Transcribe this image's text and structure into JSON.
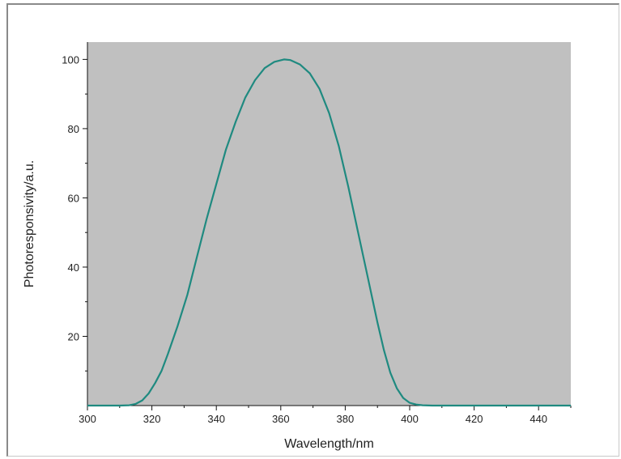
{
  "chart_data": {
    "type": "line",
    "title": "",
    "xlabel": "Wavelength/nm",
    "ylabel": "Photoresponsivity/a.u.",
    "xlim": [
      300,
      450
    ],
    "ylim": [
      0,
      105
    ],
    "x_ticks": [
      300,
      320,
      340,
      360,
      380,
      400,
      420,
      440
    ],
    "y_ticks": [
      20,
      40,
      60,
      80,
      100
    ],
    "grid": false,
    "legend": "none",
    "plot_background": "#c0c0c0",
    "line_color": "#1f8a80",
    "series": [
      {
        "x": [
          300,
          310,
          313,
          315,
          317,
          319,
          321,
          323,
          325,
          328,
          331,
          334,
          337,
          340,
          343,
          346,
          349,
          352,
          355,
          358,
          361,
          363,
          366,
          369,
          372,
          375,
          378,
          381,
          384,
          387,
          390,
          392,
          394,
          396,
          398,
          400,
          402,
          404,
          407,
          410,
          420,
          430,
          440,
          450
        ],
        "y": [
          0,
          0,
          0.1,
          0.5,
          1.5,
          3.5,
          6.5,
          10,
          15,
          23,
          32,
          43,
          54,
          64,
          74,
          82,
          89,
          94,
          97.5,
          99.3,
          100,
          99.8,
          98.5,
          96,
          91.5,
          84.5,
          75,
          63,
          50,
          37,
          24,
          16,
          9.5,
          5,
          2.2,
          0.8,
          0.3,
          0.1,
          0,
          0,
          0,
          0,
          0,
          0
        ]
      }
    ]
  }
}
